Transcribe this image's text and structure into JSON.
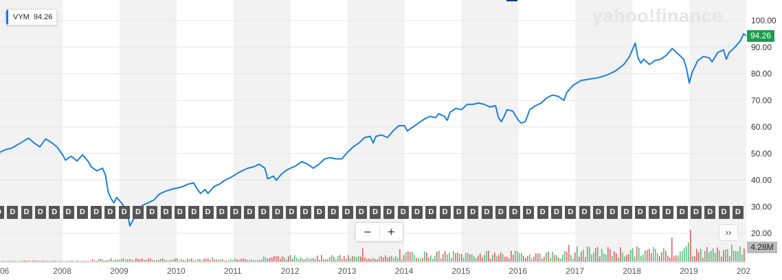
{
  "ticker": {
    "symbol": "VYM",
    "value": "94.26"
  },
  "brand": {
    "logo_text": "yahoo!finance"
  },
  "last_price_label": "94.26",
  "volume_label": "4.28M",
  "dividend_marker": {
    "label": "D",
    "count": 54
  },
  "controls": {
    "zoom_out": "−",
    "zoom_in": "+",
    "more": "››"
  },
  "colors": {
    "line": "#1a7fdb",
    "last_price_bg": "#1a9e4b",
    "vol_up": "#3bb16a",
    "vol_down": "#d8494b",
    "band": "#f2f2f2"
  },
  "chart_data": {
    "type": "line",
    "series": [
      {
        "name": "VYM",
        "values_note_removed": false
      }
    ],
    "x_tick_labels": [
      "06",
      "2008",
      "2009",
      "2010",
      "2011",
      "2012",
      "2013",
      "2014",
      "2015",
      "2016",
      "2017",
      "2018",
      "2019",
      "202"
    ],
    "y_tick_labels": [
      "100.00",
      "90.00",
      "80.00",
      "70.00",
      "60.00",
      "50.00",
      "40.00",
      "30.00",
      "20.00"
    ],
    "ylim": [
      20,
      100
    ],
    "xlim": [
      2006.9,
      2020.0
    ],
    "grid": true,
    "points": [
      [
        2006.9,
        50.5
      ],
      [
        2007.0,
        51.5
      ],
      [
        2007.1,
        52.0
      ],
      [
        2007.2,
        53.2
      ],
      [
        2007.3,
        54.5
      ],
      [
        2007.4,
        55.8
      ],
      [
        2007.5,
        54.0
      ],
      [
        2007.6,
        52.5
      ],
      [
        2007.7,
        55.5
      ],
      [
        2007.8,
        54.2
      ],
      [
        2007.9,
        52.5
      ],
      [
        2008.0,
        49.5
      ],
      [
        2008.05,
        47.5
      ],
      [
        2008.15,
        49.0
      ],
      [
        2008.25,
        47.2
      ],
      [
        2008.35,
        49.5
      ],
      [
        2008.45,
        47.0
      ],
      [
        2008.5,
        45.0
      ],
      [
        2008.6,
        43.5
      ],
      [
        2008.7,
        44.5
      ],
      [
        2008.75,
        42.0
      ],
      [
        2008.8,
        35.5
      ],
      [
        2008.85,
        33.0
      ],
      [
        2008.9,
        31.5
      ],
      [
        2008.95,
        33.5
      ],
      [
        2009.05,
        31.0
      ],
      [
        2009.1,
        29.0
      ],
      [
        2009.15,
        26.0
      ],
      [
        2009.18,
        22.8
      ],
      [
        2009.25,
        25.5
      ],
      [
        2009.32,
        28.5
      ],
      [
        2009.4,
        30.5
      ],
      [
        2009.5,
        31.5
      ],
      [
        2009.6,
        32.5
      ],
      [
        2009.7,
        34.8
      ],
      [
        2009.8,
        35.8
      ],
      [
        2009.9,
        36.5
      ],
      [
        2010.0,
        37.0
      ],
      [
        2010.1,
        37.5
      ],
      [
        2010.2,
        38.5
      ],
      [
        2010.3,
        39.0
      ],
      [
        2010.35,
        37.0
      ],
      [
        2010.42,
        35.0
      ],
      [
        2010.5,
        36.5
      ],
      [
        2010.55,
        35.0
      ],
      [
        2010.65,
        37.5
      ],
      [
        2010.75,
        38.5
      ],
      [
        2010.85,
        40.0
      ],
      [
        2010.95,
        41.0
      ],
      [
        2011.1,
        43.0
      ],
      [
        2011.25,
        44.5
      ],
      [
        2011.35,
        45.0
      ],
      [
        2011.45,
        46.0
      ],
      [
        2011.55,
        44.5
      ],
      [
        2011.6,
        40.5
      ],
      [
        2011.7,
        41.5
      ],
      [
        2011.75,
        40.0
      ],
      [
        2011.85,
        42.5
      ],
      [
        2011.95,
        44.0
      ],
      [
        2012.1,
        45.5
      ],
      [
        2012.2,
        47.0
      ],
      [
        2012.3,
        46.0
      ],
      [
        2012.4,
        44.5
      ],
      [
        2012.5,
        46.0
      ],
      [
        2012.6,
        48.0
      ],
      [
        2012.7,
        48.5
      ],
      [
        2012.8,
        48.0
      ],
      [
        2012.9,
        48.0
      ],
      [
        2013.0,
        50.5
      ],
      [
        2013.1,
        52.5
      ],
      [
        2013.2,
        54.0
      ],
      [
        2013.3,
        56.0
      ],
      [
        2013.4,
        56.5
      ],
      [
        2013.45,
        54.0
      ],
      [
        2013.5,
        56.5
      ],
      [
        2013.6,
        57.0
      ],
      [
        2013.7,
        56.0
      ],
      [
        2013.8,
        58.5
      ],
      [
        2013.9,
        60.5
      ],
      [
        2014.0,
        60.5
      ],
      [
        2014.05,
        58.5
      ],
      [
        2014.15,
        60.0
      ],
      [
        2014.25,
        61.5
      ],
      [
        2014.35,
        63.0
      ],
      [
        2014.45,
        64.0
      ],
      [
        2014.55,
        63.5
      ],
      [
        2014.6,
        65.0
      ],
      [
        2014.7,
        64.0
      ],
      [
        2014.75,
        62.5
      ],
      [
        2014.8,
        65.5
      ],
      [
        2014.9,
        67.0
      ],
      [
        2015.0,
        66.5
      ],
      [
        2015.1,
        68.5
      ],
      [
        2015.2,
        68.5
      ],
      [
        2015.3,
        69.0
      ],
      [
        2015.4,
        68.5
      ],
      [
        2015.5,
        67.5
      ],
      [
        2015.6,
        68.0
      ],
      [
        2015.65,
        63.5
      ],
      [
        2015.7,
        62.0
      ],
      [
        2015.75,
        64.0
      ],
      [
        2015.8,
        66.5
      ],
      [
        2015.9,
        66.0
      ],
      [
        2016.0,
        62.5
      ],
      [
        2016.05,
        61.5
      ],
      [
        2016.12,
        62.0
      ],
      [
        2016.2,
        66.5
      ],
      [
        2016.3,
        68.0
      ],
      [
        2016.4,
        69.0
      ],
      [
        2016.5,
        71.0
      ],
      [
        2016.6,
        72.0
      ],
      [
        2016.7,
        71.5
      ],
      [
        2016.8,
        70.0
      ],
      [
        2016.85,
        73.0
      ],
      [
        2016.95,
        75.5
      ],
      [
        2017.1,
        77.5
      ],
      [
        2017.25,
        78.0
      ],
      [
        2017.4,
        78.5
      ],
      [
        2017.55,
        79.5
      ],
      [
        2017.7,
        81.0
      ],
      [
        2017.85,
        83.5
      ],
      [
        2017.95,
        86.5
      ],
      [
        2018.05,
        91.5
      ],
      [
        2018.1,
        86.0
      ],
      [
        2018.15,
        84.0
      ],
      [
        2018.2,
        85.5
      ],
      [
        2018.3,
        83.5
      ],
      [
        2018.4,
        85.0
      ],
      [
        2018.5,
        85.5
      ],
      [
        2018.6,
        87.0
      ],
      [
        2018.7,
        89.5
      ],
      [
        2018.8,
        87.5
      ],
      [
        2018.9,
        85.5
      ],
      [
        2018.95,
        82.0
      ],
      [
        2019.0,
        76.5
      ],
      [
        2019.05,
        80.5
      ],
      [
        2019.15,
        85.0
      ],
      [
        2019.25,
        86.5
      ],
      [
        2019.35,
        86.0
      ],
      [
        2019.4,
        84.5
      ],
      [
        2019.5,
        88.0
      ],
      [
        2019.6,
        89.0
      ],
      [
        2019.65,
        85.5
      ],
      [
        2019.7,
        88.0
      ],
      [
        2019.8,
        90.0
      ],
      [
        2019.9,
        92.5
      ],
      [
        2019.95,
        95.0
      ],
      [
        2020.0,
        94.3
      ]
    ]
  }
}
